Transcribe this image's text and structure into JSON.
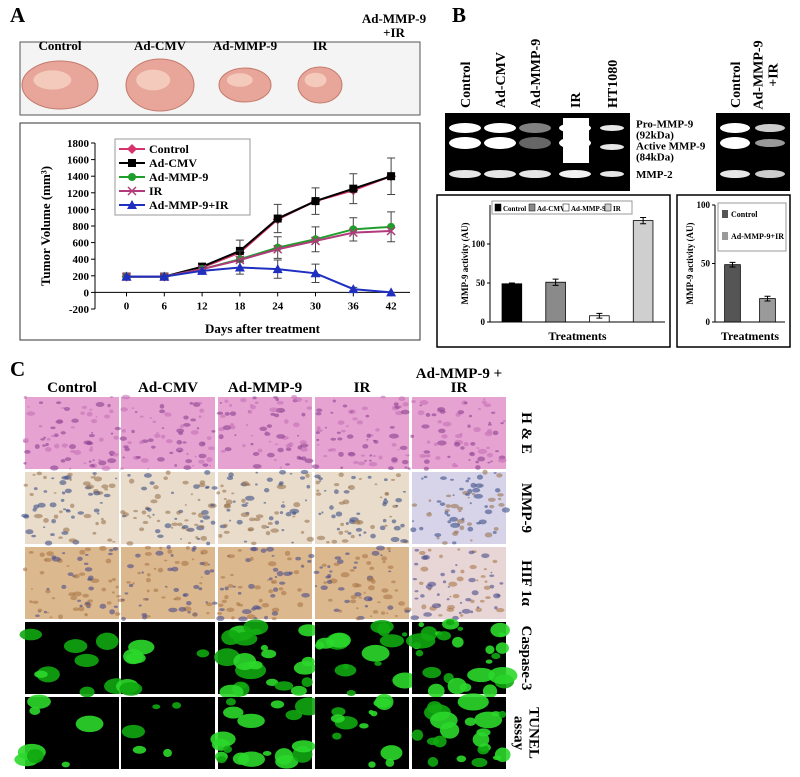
{
  "panel_labels": [
    "A",
    "B",
    "C"
  ],
  "photo_labels": [
    "Control",
    "Ad-CMV",
    "Ad-MMP-9",
    "IR",
    [
      "Ad-MMP-9",
      "+IR"
    ]
  ],
  "gel_lane_labels": [
    "Control",
    "Ad-CMV",
    "Ad-MMP-9",
    "IR",
    "HT1080"
  ],
  "gel2_lane_labels": [
    "Control",
    [
      "Ad-MMP-9",
      "+IR"
    ]
  ],
  "band_labels": [
    [
      "Pro-MMP-9",
      "(92kDa)"
    ],
    [
      "Active MMP-9",
      "(84kDa)"
    ],
    "MMP-2"
  ],
  "histology_columns": [
    "Control",
    "Ad-CMV",
    "Ad-MMP-9",
    "IR",
    [
      "Ad-MMP-9 +",
      "IR"
    ]
  ],
  "histology_rows": [
    "H & E",
    "MMP-9",
    "HIF 1α",
    "Caspase-3",
    [
      "TUNEL",
      "assay"
    ]
  ],
  "chart_data": [
    {
      "type": "line",
      "x_label": "Days after treatment",
      "y_label": "Tumor Volume (mm³)",
      "x": [
        0,
        6,
        12,
        18,
        24,
        30,
        36,
        42
      ],
      "xlim": [
        -5,
        45
      ],
      "xticks": [
        0,
        6,
        12,
        18,
        24,
        30,
        36,
        42
      ],
      "ylim": [
        -200,
        1800
      ],
      "yticks": [
        -200,
        0,
        200,
        400,
        600,
        800,
        1000,
        1200,
        1400,
        1600,
        1800
      ],
      "legend": "top-left",
      "series": [
        {
          "name": "Control",
          "color": "#d6336c",
          "marker": "diamond",
          "values": [
            190,
            190,
            300,
            480,
            880,
            1100,
            1230,
            1400
          ]
        },
        {
          "name": "Ad-CMV",
          "color": "#000000",
          "marker": "square",
          "values": [
            190,
            190,
            310,
            500,
            890,
            1100,
            1250,
            1400
          ],
          "errors": [
            20,
            20,
            40,
            130,
            170,
            160,
            180,
            220
          ]
        },
        {
          "name": "Ad-MMP-9",
          "color": "#1f9e2c",
          "marker": "circle",
          "values": [
            190,
            190,
            280,
            400,
            540,
            640,
            760,
            790
          ],
          "errors": [
            20,
            20,
            40,
            100,
            130,
            150,
            140,
            180
          ]
        },
        {
          "name": "IR",
          "color": "#b03a7a",
          "marker": "x",
          "values": [
            190,
            190,
            280,
            390,
            520,
            620,
            720,
            740
          ]
        },
        {
          "name": "Ad-MMP-9+IR",
          "color": "#1f2fbf",
          "marker": "triangle",
          "values": [
            190,
            190,
            260,
            300,
            280,
            230,
            40,
            0
          ],
          "errors": [
            20,
            20,
            40,
            80,
            110,
            110,
            20,
            0
          ]
        }
      ]
    },
    {
      "type": "bar",
      "x_label": "Treatments",
      "y_label": "MMP-9 activity (AU)",
      "categories": [
        "Control",
        "Ad-CMV",
        "Ad-MMP-9",
        "IR"
      ],
      "values": [
        49,
        51,
        8,
        130
      ],
      "errors": [
        1,
        4,
        3,
        4
      ],
      "colors": [
        "#000000",
        "#8a8a8a",
        "#ffffff",
        "#cfcfcf"
      ],
      "ylim": [
        0,
        150
      ],
      "yticks": [
        0,
        50,
        100
      ],
      "legend": "top"
    },
    {
      "type": "bar",
      "x_label": "Treatments",
      "y_label": "MMP-9 activity (AU)",
      "categories": [
        "Control",
        "Ad-MMP-9+IR"
      ],
      "values": [
        49,
        20
      ],
      "errors": [
        2,
        2
      ],
      "colors": [
        "#555555",
        "#9a9a9a"
      ],
      "ylim": [
        0,
        100
      ],
      "yticks": [
        0,
        50,
        100
      ],
      "legend": "top"
    }
  ]
}
